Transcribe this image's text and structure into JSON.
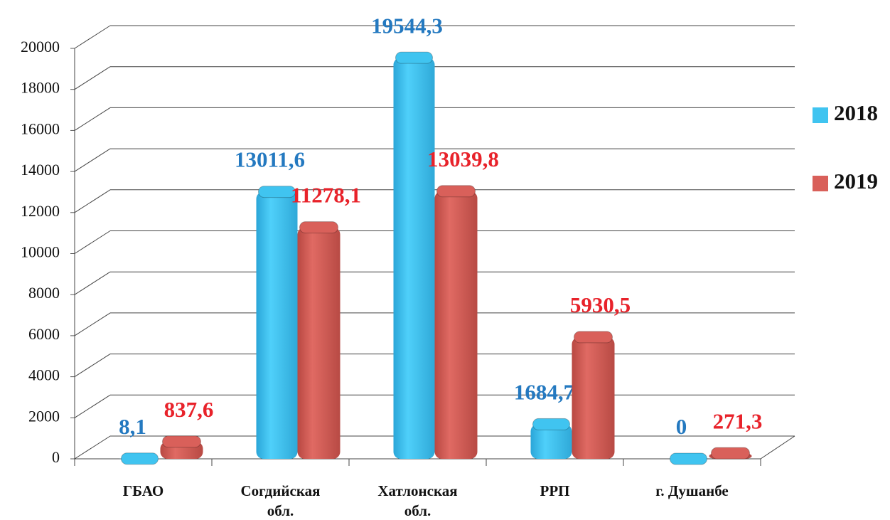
{
  "chart_data": {
    "type": "bar3d",
    "categories": [
      "ГБАО",
      "Согдийская обл.",
      "Хатлонская обл.",
      "РРП",
      "г. Душанбе"
    ],
    "series": [
      {
        "name": "2018",
        "color": "#40c4f0",
        "label_color": "#2479c0",
        "values": [
          8.1,
          13011.6,
          19544.3,
          1684.7,
          0
        ],
        "value_labels": [
          "8,1",
          "13011,6",
          "19544,3",
          "1684,7",
          "0"
        ]
      },
      {
        "name": "2019",
        "color": "#d9605a",
        "label_color": "#e8222a",
        "values": [
          837.6,
          11278.1,
          13039.8,
          5930.5,
          271.3
        ],
        "value_labels": [
          "837,6",
          "11278,1",
          "13039,8",
          "5930,5",
          "271,3"
        ]
      }
    ],
    "ylim": [
      0,
      20000
    ],
    "yticks": [
      0,
      2000,
      4000,
      6000,
      8000,
      10000,
      12000,
      14000,
      16000,
      18000,
      20000
    ],
    "grid": true,
    "legend": "right"
  }
}
